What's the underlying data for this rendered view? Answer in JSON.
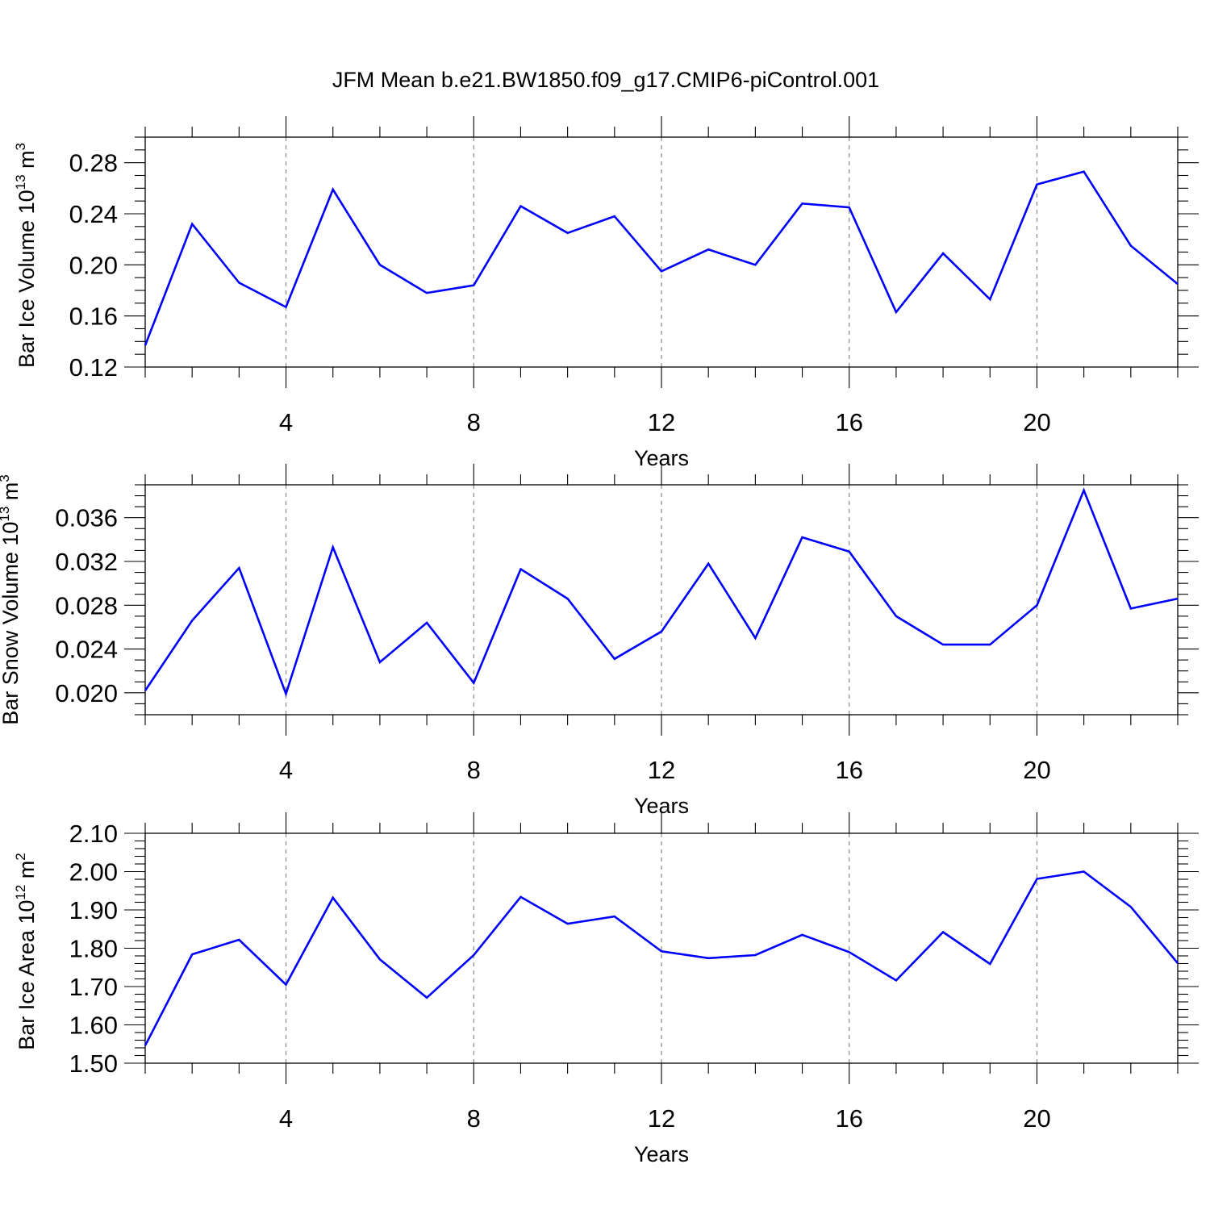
{
  "chart_data": [
    {
      "type": "line",
      "title": "JFM Mean b.e21.BW1850.f09_g17.CMIP6-piControl.001",
      "xlabel": "Years",
      "ylabel": {
        "prefix": "Bar Ice Volume 10",
        "exp": "13",
        "unit": " m",
        "unit_exp": "3"
      },
      "xlim": [
        1,
        23
      ],
      "xticks": [
        4,
        8,
        12,
        16,
        20
      ],
      "xtick_labels": [
        "4",
        "8",
        "12",
        "16",
        "20"
      ],
      "ylim": [
        0.12,
        0.3
      ],
      "yticks": [
        0.12,
        0.16,
        0.2,
        0.24,
        0.28
      ],
      "ytick_labels": [
        "0.12",
        "0.16",
        "0.20",
        "0.24",
        "0.28"
      ],
      "y_minor_step": 0.01,
      "x": [
        1,
        2,
        3,
        4,
        5,
        6,
        7,
        8,
        9,
        10,
        11,
        12,
        13,
        14,
        15,
        16,
        17,
        18,
        19,
        20,
        21,
        22,
        23
      ],
      "series": [
        {
          "name": "Bar Ice Volume",
          "color": "#0000ff",
          "values": [
            0.137,
            0.232,
            0.186,
            0.167,
            0.259,
            0.2,
            0.178,
            0.184,
            0.246,
            0.225,
            0.238,
            0.195,
            0.212,
            0.2,
            0.248,
            0.245,
            0.163,
            0.209,
            0.173,
            0.263,
            0.273,
            0.215,
            0.185
          ]
        }
      ]
    },
    {
      "type": "line",
      "xlabel": "Years",
      "ylabel": {
        "prefix": "Bar Snow Volume 10",
        "exp": "13",
        "unit": " m",
        "unit_exp": "3"
      },
      "xlim": [
        1,
        23
      ],
      "xticks": [
        4,
        8,
        12,
        16,
        20
      ],
      "xtick_labels": [
        "4",
        "8",
        "12",
        "16",
        "20"
      ],
      "ylim": [
        0.018,
        0.039
      ],
      "yticks": [
        0.02,
        0.024,
        0.028,
        0.032,
        0.036
      ],
      "ytick_labels": [
        "0.020",
        "0.024",
        "0.028",
        "0.032",
        "0.036"
      ],
      "y_minor_step": 0.001,
      "x": [
        1,
        2,
        3,
        4,
        5,
        6,
        7,
        8,
        9,
        10,
        11,
        12,
        13,
        14,
        15,
        16,
        17,
        18,
        19,
        20,
        21,
        22,
        23
      ],
      "series": [
        {
          "name": "Bar Snow Volume",
          "color": "#0000ff",
          "values": [
            0.0202,
            0.0266,
            0.0314,
            0.0199,
            0.0333,
            0.0228,
            0.0264,
            0.0209,
            0.0313,
            0.0286,
            0.0231,
            0.0256,
            0.0318,
            0.025,
            0.0342,
            0.0329,
            0.027,
            0.0244,
            0.0244,
            0.028,
            0.0385,
            0.0277,
            0.0286
          ]
        }
      ]
    },
    {
      "type": "line",
      "xlabel": "Years",
      "ylabel": {
        "prefix": "Bar Ice Area 10",
        "exp": "12",
        "unit": " m",
        "unit_exp": "2"
      },
      "xlim": [
        1,
        23
      ],
      "xticks": [
        4,
        8,
        12,
        16,
        20
      ],
      "xtick_labels": [
        "4",
        "8",
        "12",
        "16",
        "20"
      ],
      "ylim": [
        1.5,
        2.1
      ],
      "yticks": [
        1.5,
        1.6,
        1.7,
        1.8,
        1.9,
        2.0,
        2.1
      ],
      "ytick_labels": [
        "1.50",
        "1.60",
        "1.70",
        "1.80",
        "1.90",
        "2.00",
        "2.10"
      ],
      "y_minor_step": 0.02,
      "x": [
        1,
        2,
        3,
        4,
        5,
        6,
        7,
        8,
        9,
        10,
        11,
        12,
        13,
        14,
        15,
        16,
        17,
        18,
        19,
        20,
        21,
        22,
        23
      ],
      "series": [
        {
          "name": "Bar Ice Area",
          "color": "#0000ff",
          "values": [
            1.546,
            1.784,
            1.822,
            1.705,
            1.932,
            1.771,
            1.671,
            1.782,
            1.934,
            1.864,
            1.883,
            1.792,
            1.774,
            1.782,
            1.835,
            1.79,
            1.716,
            1.842,
            1.759,
            1.981,
            2.0,
            1.908,
            1.761
          ]
        }
      ]
    }
  ]
}
